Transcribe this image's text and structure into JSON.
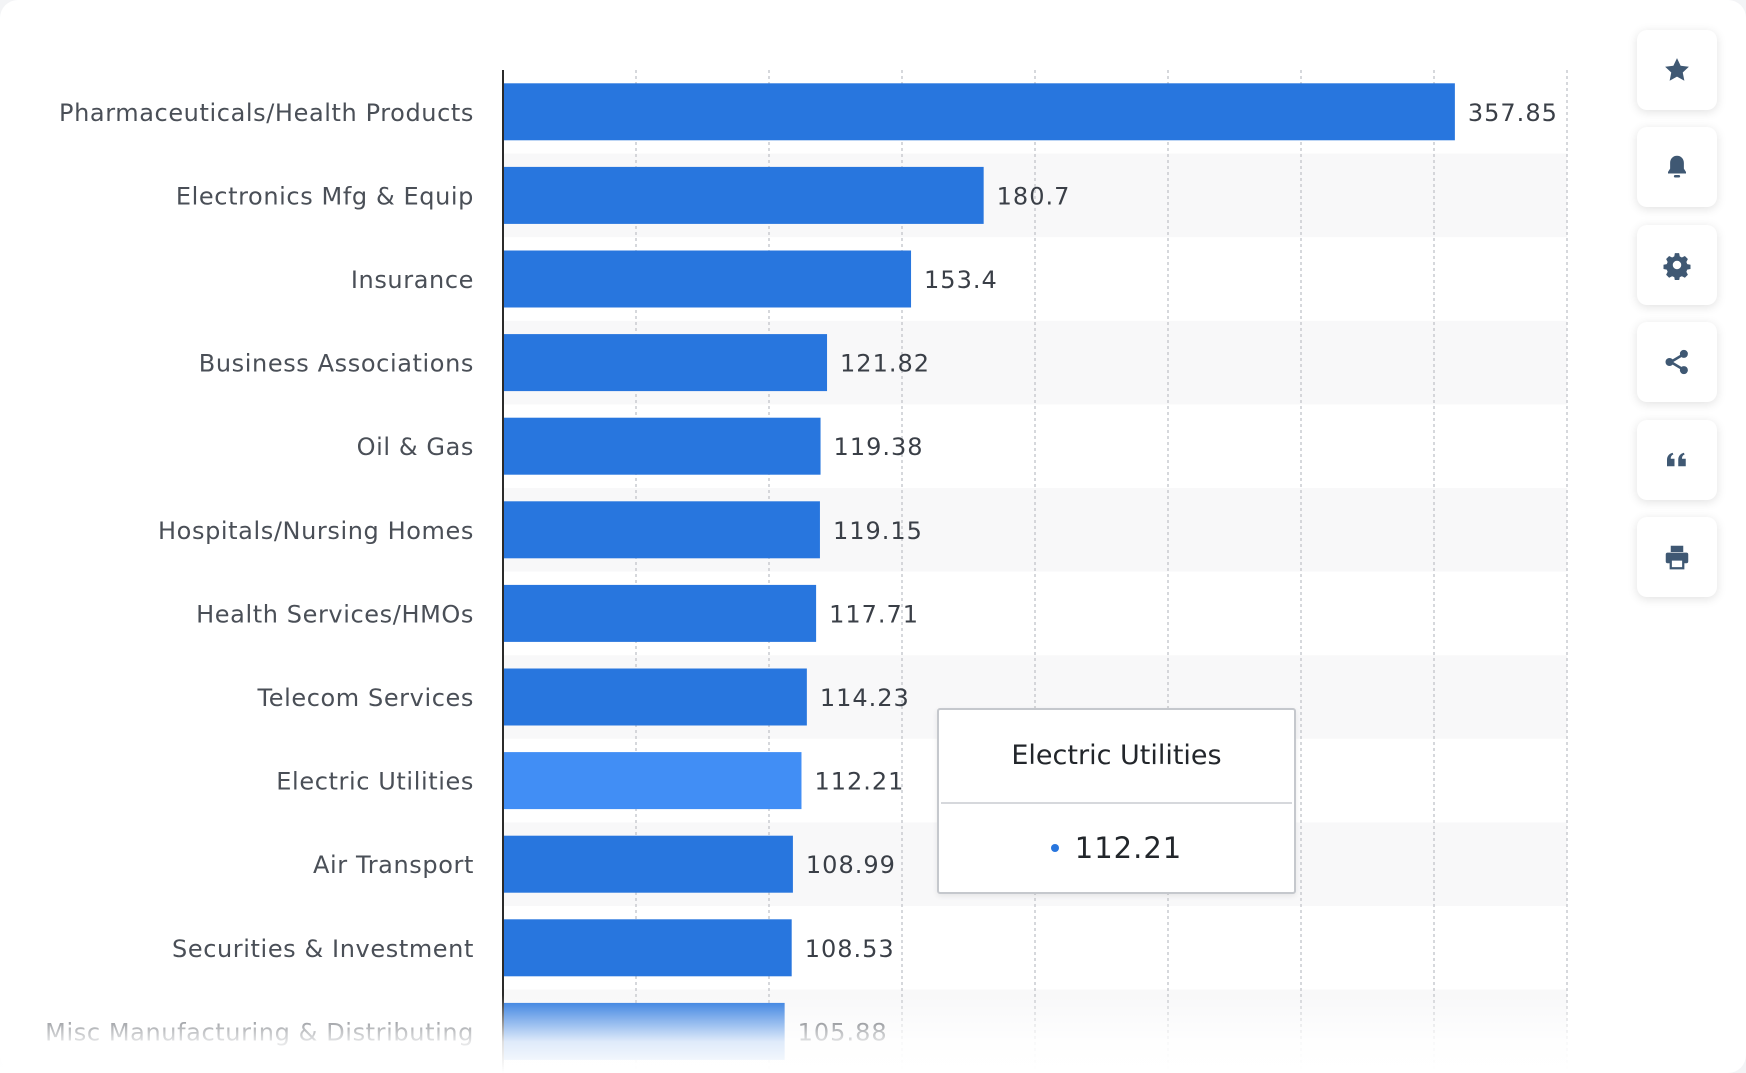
{
  "chart_data": {
    "type": "bar",
    "orientation": "horizontal",
    "categories": [
      "Pharmaceuticals/Health Products",
      "Electronics Mfg & Equip",
      "Insurance",
      "Business Associations",
      "Oil & Gas",
      "Hospitals/Nursing Homes",
      "Health Services/HMOs",
      "Telecom Services",
      "Electric Utilities",
      "Air Transport",
      "Securities & Investment",
      "Misc Manufacturing & Distributing"
    ],
    "values": [
      357.85,
      180.7,
      153.4,
      121.82,
      119.38,
      119.15,
      117.71,
      114.23,
      112.21,
      108.99,
      108.53,
      105.88
    ],
    "value_labels": [
      "357.85",
      "180.7",
      "153.4",
      "121.82",
      "119.38",
      "119.15",
      "117.71",
      "114.23",
      "112.21",
      "108.99",
      "108.53",
      "105.88"
    ],
    "highlighted_category": "Electric Utilities",
    "xlim": [
      0,
      400
    ],
    "grid": true,
    "bar_color": "#2876de",
    "highlight_color": "#418ef5"
  },
  "tooltip": {
    "title": "Electric Utilities",
    "value": "112.21"
  },
  "toolbar": {
    "buttons": [
      {
        "name": "favorite-button",
        "icon": "star-icon"
      },
      {
        "name": "notification-button",
        "icon": "bell-icon"
      },
      {
        "name": "settings-button",
        "icon": "gear-icon"
      },
      {
        "name": "share-button",
        "icon": "share-icon"
      },
      {
        "name": "cite-button",
        "icon": "quote-icon"
      },
      {
        "name": "print-button",
        "icon": "printer-icon"
      }
    ]
  }
}
